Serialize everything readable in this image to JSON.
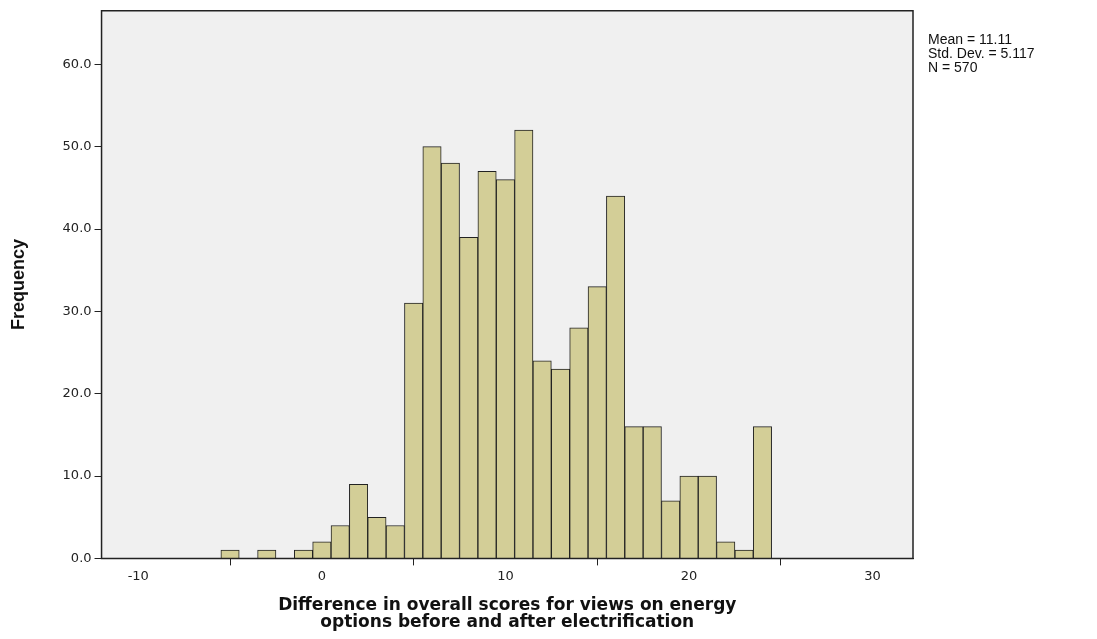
{
  "chart_data": {
    "type": "histogram",
    "xlabel": "Difference in overall scores for views on energy options before and after electrification",
    "ylabel": "Frequency",
    "bins": [
      -5.5,
      -4.5,
      -3.5,
      -2.5,
      -1.5,
      -0.5,
      0.5,
      1.5,
      2.5,
      3.5,
      4.5,
      5.5,
      6.5,
      7.5,
      8.5,
      9.5,
      10.5,
      11.5,
      12.5,
      13.5,
      14.5,
      15.5,
      16.5,
      17.5,
      18.5,
      19.5,
      20.5,
      21.5,
      22.5,
      23.5,
      24.5
    ],
    "values": [
      1,
      0,
      1,
      0,
      1,
      2,
      4,
      9,
      5,
      4,
      31,
      50,
      48,
      39,
      47,
      46,
      52,
      24,
      23,
      28,
      33,
      44,
      16,
      16,
      7,
      10,
      10,
      2,
      1,
      16
    ],
    "color": "#d3ce97",
    "xlim": [
      -12,
      32.2
    ],
    "xticks": [
      -10,
      0,
      10,
      20,
      30
    ],
    "ylim": [
      0,
      66.5
    ],
    "yticks": [
      {
        "value": 0,
        "label": "0.0"
      },
      {
        "value": 10,
        "label": "10.0"
      },
      {
        "value": 20,
        "label": "20.0"
      },
      {
        "value": 30,
        "label": "30.0"
      },
      {
        "value": 40,
        "label": "40.0"
      },
      {
        "value": 50,
        "label": "50.0"
      },
      {
        "value": 60,
        "label": "60.0"
      }
    ],
    "grid": false,
    "legend": false,
    "annotations": [
      "Mean = 11.11",
      "Std. Dev. = 5.117",
      "N = 570"
    ]
  }
}
